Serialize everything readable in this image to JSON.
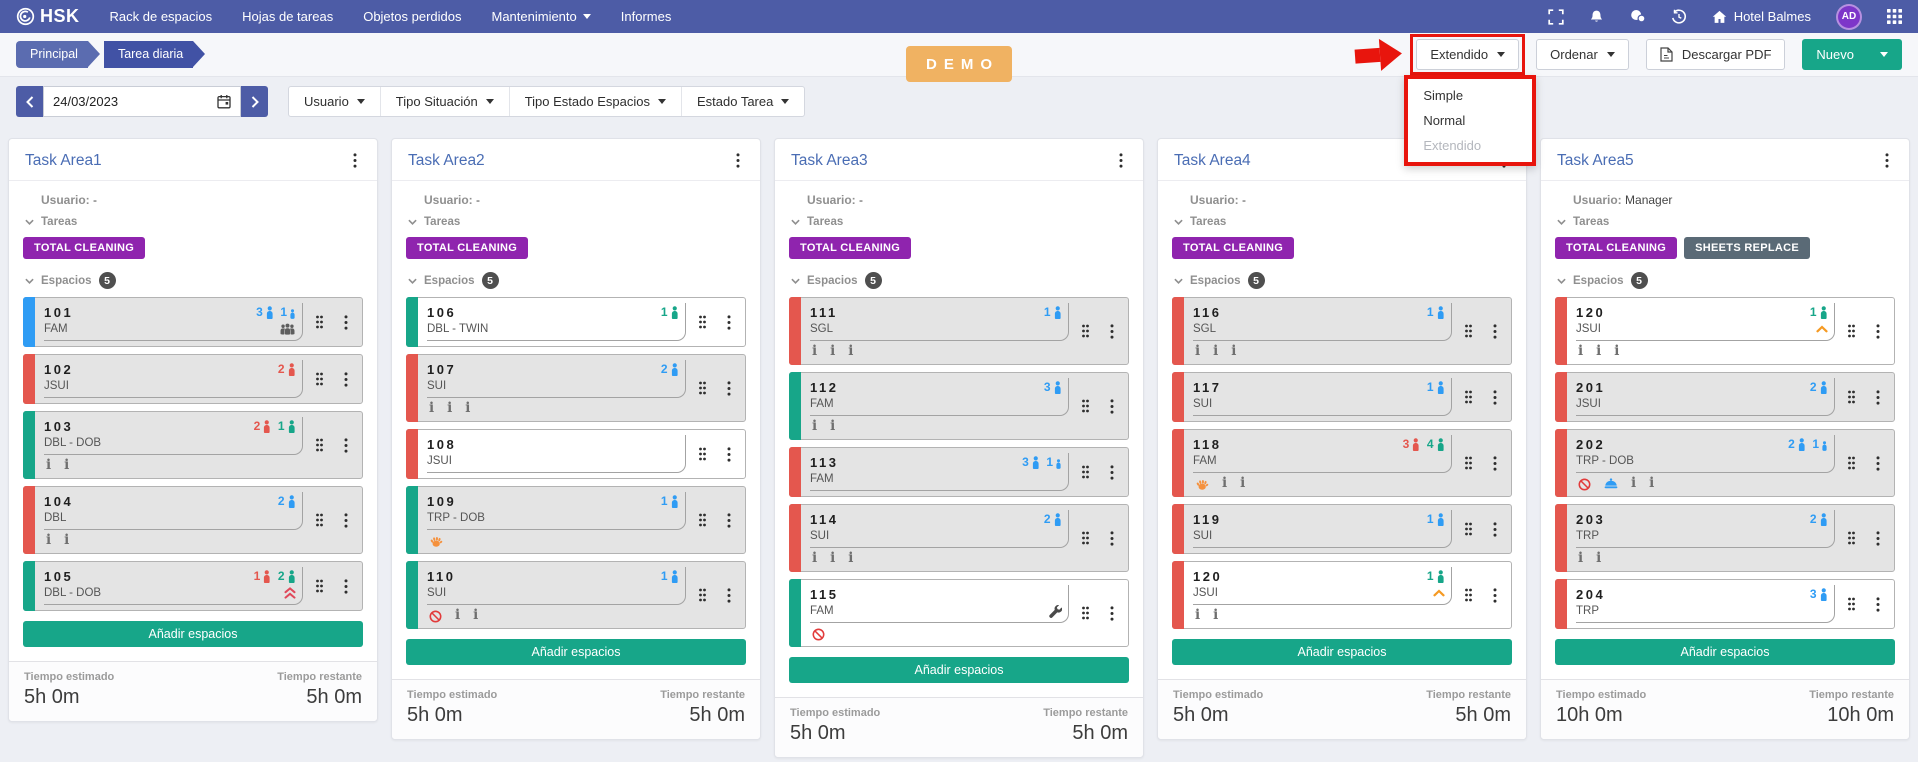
{
  "colors": {
    "navbar": "#4d5ca6",
    "accent_teal": "#17a689",
    "badge_purple": "#8f24ae",
    "badge_slate": "#5a6a76",
    "person_blue": "#2f9cf4",
    "person_red": "#e4574e",
    "person_teal": "#17a689",
    "demo_orange": "#f0b262",
    "annotation_red": "#e8150d",
    "breadcrumb_first": "#5b6cb0",
    "breadcrumb_second": "#4152a5",
    "title_blue": "#4a6db4",
    "chevron_orange": "#f59a23",
    "chevron_red": "#e0485a"
  },
  "navbar": {
    "logo_text": "HSK",
    "items": [
      {
        "label": "Rack de espacios"
      },
      {
        "label": "Hojas de tareas"
      },
      {
        "label": "Objetos perdidos"
      },
      {
        "label": "Mantenimiento",
        "caret": true
      },
      {
        "label": "Informes"
      }
    ],
    "hotel_label": "Hotel Balmes",
    "avatar_initials": "AD"
  },
  "breadcrumb": [
    {
      "label": "Principal"
    },
    {
      "label": "Tarea diaria"
    }
  ],
  "demo_badge": "DEMO",
  "toolbar": {
    "view_button": "Extendido",
    "view_menu": [
      {
        "label": "Simple"
      },
      {
        "label": "Normal"
      },
      {
        "label": "Extendido",
        "disabled": true
      }
    ],
    "sort_button": "Ordenar",
    "pdf_button": "Descargar PDF",
    "new_button": "Nuevo"
  },
  "filters": {
    "date": "24/03/2023",
    "dropdowns": [
      "Usuario",
      "Tipo Situación",
      "Tipo Estado Espacios",
      "Estado Tarea"
    ]
  },
  "labels": {
    "usuario": "Usuario:",
    "tareas": "Tareas",
    "espacios": "Espacios",
    "add_spaces": "Añadir espacios",
    "time_estimated": "Tiempo estimado",
    "time_remaining": "Tiempo restante"
  },
  "cards": [
    {
      "title": "Task Area1",
      "user": "-",
      "spaces_count": "5",
      "tasks": [
        {
          "label": "TOTAL CLEANING",
          "color": "purple"
        }
      ],
      "rooms": [
        {
          "number": "101",
          "type": "FAM",
          "bg": "gray",
          "stripe": "blue",
          "counts": [
            {
              "n": "3",
              "color": "blue"
            },
            {
              "n": "1",
              "color": "blue",
              "small": true
            }
          ],
          "line2_icon": "group",
          "below_icons": []
        },
        {
          "number": "102",
          "type": "JSUI",
          "bg": "gray",
          "stripe": "red",
          "counts": [
            {
              "n": "2",
              "color": "red"
            }
          ],
          "line2_icon": null,
          "below_icons": []
        },
        {
          "number": "103",
          "type": "DBL - DOB",
          "bg": "gray",
          "stripe": "teal",
          "counts": [
            {
              "n": "2",
              "color": "red"
            },
            {
              "n": "1",
              "color": "teal"
            }
          ],
          "line2_icon": null,
          "below_icons": [
            "info",
            "info"
          ]
        },
        {
          "number": "104",
          "type": "DBL",
          "bg": "gray",
          "stripe": "red",
          "counts": [
            {
              "n": "2",
              "color": "blue"
            }
          ],
          "line2_icon": null,
          "below_icons": [
            "info",
            "info"
          ]
        },
        {
          "number": "105",
          "type": "DBL - DOB",
          "bg": "gray",
          "stripe": "teal",
          "counts": [
            {
              "n": "1",
              "color": "red"
            },
            {
              "n": "2",
              "color": "teal"
            }
          ],
          "line2_icon": "dbl-chevron-up",
          "below_icons": []
        }
      ],
      "time_estimated": "5h 0m",
      "time_remaining": "5h 0m"
    },
    {
      "title": "Task Area2",
      "user": "-",
      "spaces_count": "5",
      "tasks": [
        {
          "label": "TOTAL CLEANING",
          "color": "purple"
        }
      ],
      "rooms": [
        {
          "number": "106",
          "type": "DBL - TWIN",
          "bg": "white",
          "stripe": "teal",
          "counts": [
            {
              "n": "1",
              "color": "teal"
            }
          ],
          "line2_icon": null,
          "below_icons": []
        },
        {
          "number": "107",
          "type": "SUI",
          "bg": "gray",
          "stripe": "red",
          "counts": [
            {
              "n": "2",
              "color": "blue"
            }
          ],
          "line2_icon": null,
          "below_icons": [
            "info",
            "info",
            "info"
          ]
        },
        {
          "number": "108",
          "type": "JSUI",
          "bg": "white",
          "stripe": "red",
          "counts": [],
          "line2_icon": null,
          "below_icons": []
        },
        {
          "number": "109",
          "type": "TRP - DOB",
          "bg": "gray",
          "stripe": "teal",
          "counts": [
            {
              "n": "1",
              "color": "blue"
            }
          ],
          "line2_icon": null,
          "below_icons": [
            "hand"
          ]
        },
        {
          "number": "110",
          "type": "SUI",
          "bg": "gray",
          "stripe": "teal",
          "counts": [
            {
              "n": "1",
              "color": "blue"
            }
          ],
          "line2_icon": null,
          "below_icons": [
            "noentry",
            "info",
            "info"
          ]
        }
      ],
      "time_estimated": "5h 0m",
      "time_remaining": "5h 0m"
    },
    {
      "title": "Task Area3",
      "user": "-",
      "spaces_count": "5",
      "tasks": [
        {
          "label": "TOTAL CLEANING",
          "color": "purple"
        }
      ],
      "rooms": [
        {
          "number": "111",
          "type": "SGL",
          "bg": "gray",
          "stripe": "red",
          "counts": [
            {
              "n": "1",
              "color": "blue"
            }
          ],
          "line2_icon": null,
          "below_icons": [
            "info",
            "info",
            "info"
          ]
        },
        {
          "number": "112",
          "type": "FAM",
          "bg": "gray",
          "stripe": "teal",
          "counts": [
            {
              "n": "3",
              "color": "blue"
            }
          ],
          "line2_icon": null,
          "below_icons": [
            "info",
            "info"
          ]
        },
        {
          "number": "113",
          "type": "FAM",
          "bg": "gray",
          "stripe": "red",
          "counts": [
            {
              "n": "3",
              "color": "blue"
            },
            {
              "n": "1",
              "color": "blue",
              "small": true
            }
          ],
          "line2_icon": null,
          "below_icons": []
        },
        {
          "number": "114",
          "type": "SUI",
          "bg": "gray",
          "stripe": "red",
          "counts": [
            {
              "n": "2",
              "color": "blue"
            }
          ],
          "line2_icon": null,
          "below_icons": [
            "info",
            "info",
            "info"
          ]
        },
        {
          "number": "115",
          "type": "FAM",
          "bg": "white",
          "stripe": "teal",
          "counts": [],
          "line2_icon": "wrench",
          "below_icons": [
            "noentry"
          ]
        }
      ],
      "time_estimated": "5h 0m",
      "time_remaining": "5h 0m"
    },
    {
      "title": "Task Area4",
      "user": "-",
      "spaces_count": "5",
      "tasks": [
        {
          "label": "TOTAL CLEANING",
          "color": "purple"
        }
      ],
      "rooms": [
        {
          "number": "116",
          "type": "SGL",
          "bg": "gray",
          "stripe": "red",
          "counts": [
            {
              "n": "1",
              "color": "blue"
            }
          ],
          "line2_icon": null,
          "below_icons": [
            "info",
            "info",
            "info"
          ]
        },
        {
          "number": "117",
          "type": "SUI",
          "bg": "gray",
          "stripe": "red",
          "counts": [
            {
              "n": "1",
              "color": "blue"
            }
          ],
          "line2_icon": null,
          "below_icons": []
        },
        {
          "number": "118",
          "type": "FAM",
          "bg": "gray",
          "stripe": "red",
          "counts": [
            {
              "n": "3",
              "color": "red"
            },
            {
              "n": "4",
              "color": "teal"
            }
          ],
          "line2_icon": null,
          "below_icons": [
            "hand",
            "info",
            "info"
          ]
        },
        {
          "number": "119",
          "type": "SUI",
          "bg": "gray",
          "stripe": "red",
          "counts": [
            {
              "n": "1",
              "color": "blue"
            }
          ],
          "line2_icon": null,
          "below_icons": []
        },
        {
          "number": "120",
          "type": "JSUI",
          "bg": "white",
          "stripe": "red",
          "counts": [
            {
              "n": "1",
              "color": "teal"
            }
          ],
          "line2_icon": "chevron-up",
          "below_icons": [
            "info",
            "info"
          ]
        }
      ],
      "time_estimated": "5h 0m",
      "time_remaining": "5h 0m"
    },
    {
      "title": "Task Area5",
      "user": "Manager",
      "spaces_count": "5",
      "tasks": [
        {
          "label": "TOTAL CLEANING",
          "color": "purple"
        },
        {
          "label": "SHEETS REPLACE",
          "color": "slate"
        }
      ],
      "rooms": [
        {
          "number": "120",
          "type": "JSUI",
          "bg": "white",
          "stripe": "red",
          "counts": [
            {
              "n": "1",
              "color": "teal"
            }
          ],
          "line2_icon": "chevron-up",
          "below_icons": [
            "info",
            "info",
            "info"
          ]
        },
        {
          "number": "201",
          "type": "JSUI",
          "bg": "gray",
          "stripe": "red",
          "counts": [
            {
              "n": "2",
              "color": "blue"
            }
          ],
          "line2_icon": null,
          "below_icons": []
        },
        {
          "number": "202",
          "type": "TRP - DOB",
          "bg": "gray",
          "stripe": "red",
          "counts": [
            {
              "n": "2",
              "color": "blue"
            },
            {
              "n": "1",
              "color": "blue",
              "small": true
            }
          ],
          "line2_icon": null,
          "below_icons": [
            "noentry",
            "cloche",
            "info",
            "info"
          ]
        },
        {
          "number": "203",
          "type": "TRP",
          "bg": "gray",
          "stripe": "red",
          "counts": [
            {
              "n": "2",
              "color": "blue"
            }
          ],
          "line2_icon": null,
          "below_icons": [
            "info",
            "info"
          ]
        },
        {
          "number": "204",
          "type": "TRP",
          "bg": "white",
          "stripe": "red",
          "counts": [
            {
              "n": "3",
              "color": "blue"
            }
          ],
          "line2_icon": null,
          "below_icons": []
        }
      ],
      "time_estimated": "10h 0m",
      "time_remaining": "10h 0m"
    }
  ]
}
